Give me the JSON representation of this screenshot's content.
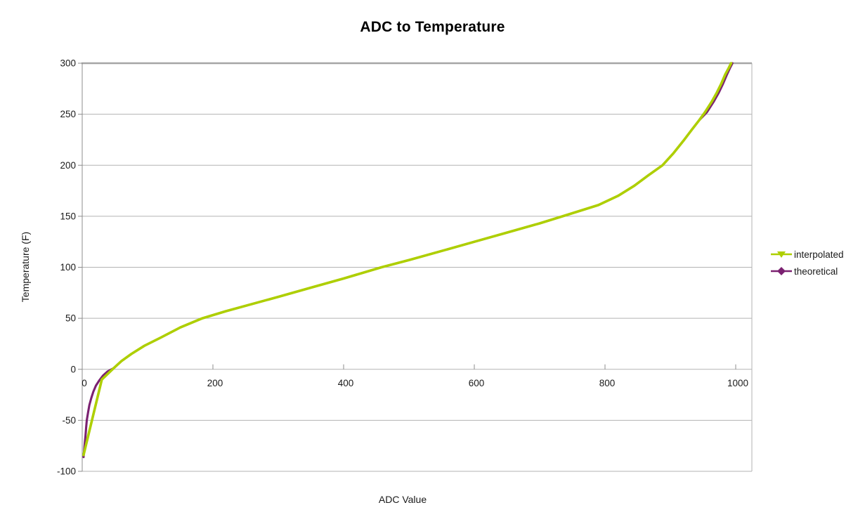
{
  "title": "ADC to Temperature",
  "colors": {
    "background": "#FFFFFF",
    "grid": "#B3B3B3",
    "plot_border": "#B3B3B3",
    "plot_border_top": "#A6A6A6",
    "axis_line": "#8C8C8C",
    "tick": "#8C8C8C",
    "text": "#1A1A1A",
    "title_text": "#000000",
    "interpolated": "#AECF00",
    "theoretical": "#7B2171"
  },
  "legend": {
    "position": "right",
    "items": [
      {
        "label": "interpolated",
        "marker": "triangle-down-icon",
        "color": "#AECF00"
      },
      {
        "label": "theoretical",
        "marker": "diamond-icon",
        "color": "#7B2171"
      }
    ]
  },
  "chart_data": {
    "type": "line",
    "title": "ADC to Temperature",
    "xlabel": "ADC Value",
    "ylabel": "Temperature (F)",
    "xlim": [
      0,
      1025
    ],
    "ylim": [
      -100,
      300
    ],
    "xticks": [
      0,
      200,
      400,
      600,
      800,
      1000
    ],
    "yticks": [
      -100,
      -50,
      0,
      50,
      100,
      150,
      200,
      250,
      300
    ],
    "grid": "horizontal-only",
    "legend_position": "right",
    "series": [
      {
        "name": "theoretical",
        "color": "#7B2171",
        "marker": "diamond",
        "line_width": 3.1,
        "points": [
          [
            2,
            -86
          ],
          [
            3,
            -79
          ],
          [
            4,
            -72
          ],
          [
            5,
            -65
          ],
          [
            6,
            -57
          ],
          [
            7,
            -50
          ],
          [
            9,
            -42
          ],
          [
            11,
            -35
          ],
          [
            14,
            -28
          ],
          [
            17,
            -22
          ],
          [
            21,
            -16
          ],
          [
            26,
            -11
          ],
          [
            32,
            -6
          ],
          [
            39,
            -2
          ],
          [
            48,
            1
          ],
          [
            60,
            8
          ],
          [
            75,
            15
          ],
          [
            95,
            23
          ],
          [
            120,
            31
          ],
          [
            150,
            41
          ],
          [
            184,
            50
          ],
          [
            220,
            57
          ],
          [
            260,
            64
          ],
          [
            300,
            71
          ],
          [
            350,
            80
          ],
          [
            400,
            89
          ],
          [
            458,
            100
          ],
          [
            500,
            107
          ],
          [
            550,
            116
          ],
          [
            600,
            125
          ],
          [
            650,
            134
          ],
          [
            700,
            143
          ],
          [
            745,
            152
          ],
          [
            790,
            161
          ],
          [
            820,
            170
          ],
          [
            845,
            180
          ],
          [
            866,
            190
          ],
          [
            888,
            200
          ],
          [
            905,
            212
          ],
          [
            920,
            224
          ],
          [
            933,
            235
          ],
          [
            944,
            244
          ],
          [
            956,
            252
          ],
          [
            966,
            262
          ],
          [
            974,
            271
          ],
          [
            980,
            279
          ],
          [
            986,
            288
          ],
          [
            991,
            295
          ],
          [
            995,
            300
          ]
        ]
      },
      {
        "name": "interpolated",
        "color": "#AECF00",
        "marker": "triangle-down",
        "line_width": 3.6,
        "points": [
          [
            2,
            -84
          ],
          [
            30,
            -10
          ],
          [
            48,
            1
          ],
          [
            60,
            8
          ],
          [
            75,
            15
          ],
          [
            95,
            23
          ],
          [
            120,
            31
          ],
          [
            150,
            41
          ],
          [
            184,
            50
          ],
          [
            220,
            57
          ],
          [
            260,
            64
          ],
          [
            300,
            71
          ],
          [
            350,
            80
          ],
          [
            400,
            89
          ],
          [
            458,
            100
          ],
          [
            500,
            107
          ],
          [
            550,
            116
          ],
          [
            600,
            125
          ],
          [
            650,
            134
          ],
          [
            700,
            143
          ],
          [
            745,
            152
          ],
          [
            790,
            161
          ],
          [
            820,
            170
          ],
          [
            845,
            180
          ],
          [
            866,
            190
          ],
          [
            888,
            200
          ],
          [
            905,
            212
          ],
          [
            920,
            224
          ],
          [
            933,
            235
          ],
          [
            944,
            244
          ],
          [
            953,
            252
          ],
          [
            963,
            262
          ],
          [
            971,
            271
          ],
          [
            978,
            280
          ],
          [
            984,
            289
          ],
          [
            989,
            295
          ],
          [
            993,
            300
          ]
        ]
      }
    ]
  }
}
